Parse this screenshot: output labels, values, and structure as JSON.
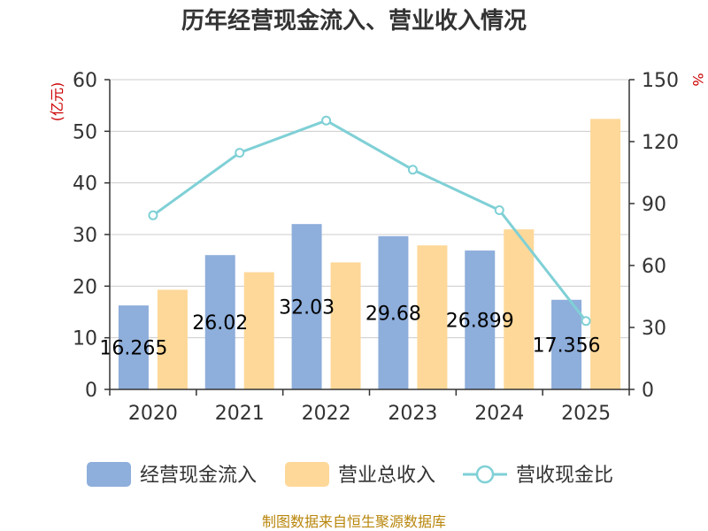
{
  "chart_data": {
    "type": "bar",
    "title": "历年经营现金流入、营业收入情况",
    "categories": [
      "2020",
      "2021",
      "2022",
      "2023",
      "2024",
      "2025"
    ],
    "series": [
      {
        "name": "经营现金流入",
        "kind": "bar",
        "axis": "left",
        "values": [
          16.265,
          26.02,
          32.03,
          29.68,
          26.899,
          17.356
        ],
        "labels": [
          "16.265",
          "26.02",
          "32.03",
          "29.68",
          "26.899",
          "17.356"
        ]
      },
      {
        "name": "营业总收入",
        "kind": "bar",
        "axis": "left",
        "values": [
          19.3,
          22.7,
          24.6,
          27.9,
          31.0,
          52.4
        ]
      },
      {
        "name": "营收现金比",
        "kind": "line",
        "axis": "right",
        "values": [
          84.3,
          114.6,
          130.2,
          106.4,
          86.8,
          33.1
        ]
      }
    ],
    "left_axis": {
      "unit": "(亿元)",
      "ylim": [
        0,
        60
      ],
      "ticks": [
        0,
        10,
        20,
        30,
        40,
        50,
        60
      ]
    },
    "right_axis": {
      "unit": "%",
      "ylim": [
        0,
        150
      ],
      "ticks": [
        0,
        30,
        60,
        90,
        120,
        150
      ]
    },
    "grid": true,
    "legend_position": "bottom",
    "source": "制图数据来自恒生聚源数据库"
  },
  "colors": {
    "cash_inflow": "#8eaedb",
    "revenue": "#fed899",
    "ratio": "#7fd0d6",
    "axis": "#333333",
    "grid": "#cccccc",
    "unit": "#cc0000",
    "source": "#b8860b"
  }
}
